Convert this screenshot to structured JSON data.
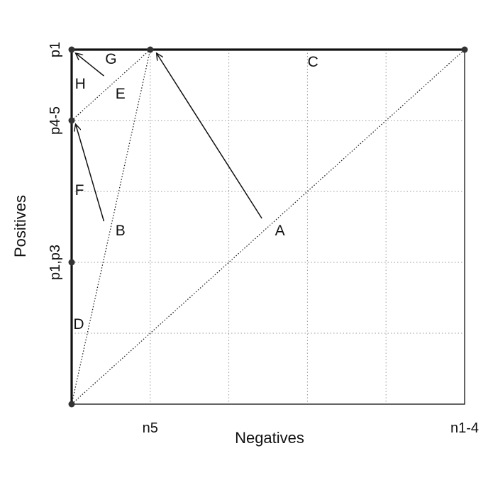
{
  "chart_data": {
    "type": "line",
    "title": "",
    "xlabel": "Negatives",
    "ylabel": "Positives",
    "xlim": [
      0,
      5
    ],
    "ylim": [
      0,
      5
    ],
    "grid": true,
    "x_ticks": [
      {
        "value": 0,
        "label": ""
      },
      {
        "value": 1,
        "label": "n5"
      },
      {
        "value": 2,
        "label": ""
      },
      {
        "value": 3,
        "label": ""
      },
      {
        "value": 4,
        "label": ""
      },
      {
        "value": 5,
        "label": "n1-4"
      }
    ],
    "y_ticks": [
      {
        "value": 0,
        "label": ""
      },
      {
        "value": 1,
        "label": ""
      },
      {
        "value": 2,
        "label": "p1,p3"
      },
      {
        "value": 3,
        "label": ""
      },
      {
        "value": 4,
        "label": "p4-5"
      },
      {
        "value": 5,
        "label": "p1"
      }
    ],
    "points": [
      {
        "x": 0,
        "y": 0
      },
      {
        "x": 0,
        "y": 2
      },
      {
        "x": 0,
        "y": 4
      },
      {
        "x": 0,
        "y": 5
      },
      {
        "x": 1,
        "y": 5
      },
      {
        "x": 5,
        "y": 5
      }
    ],
    "solid_segments": [
      {
        "from": [
          0,
          0
        ],
        "to": [
          0,
          5
        ]
      },
      {
        "from": [
          0,
          5
        ],
        "to": [
          5,
          5
        ]
      }
    ],
    "dotted_segments": [
      {
        "from": [
          0,
          0
        ],
        "to": [
          5,
          5
        ]
      },
      {
        "from": [
          0,
          0
        ],
        "to": [
          1,
          5
        ]
      },
      {
        "from": [
          0,
          4
        ],
        "to": [
          1,
          5
        ]
      }
    ],
    "annotations": [
      {
        "text": "A",
        "x": 2.65,
        "y": 2.45
      },
      {
        "text": "B",
        "x": 0.62,
        "y": 2.45
      },
      {
        "text": "C",
        "x": 3.07,
        "y": 4.83
      },
      {
        "text": "D",
        "x": 0.09,
        "y": 1.13
      },
      {
        "text": "E",
        "x": 0.62,
        "y": 4.38
      },
      {
        "text": "F",
        "x": 0.1,
        "y": 3.02
      },
      {
        "text": "G",
        "x": 0.5,
        "y": 4.87
      },
      {
        "text": "H",
        "x": 0.11,
        "y": 4.52
      }
    ],
    "arrows": [
      {
        "from": [
          2.42,
          2.62
        ],
        "to": [
          1.08,
          4.95
        ]
      },
      {
        "from": [
          0.41,
          2.58
        ],
        "to": [
          0.05,
          3.95
        ]
      },
      {
        "from": [
          0.41,
          4.63
        ],
        "to": [
          0.05,
          4.95
        ]
      }
    ]
  }
}
